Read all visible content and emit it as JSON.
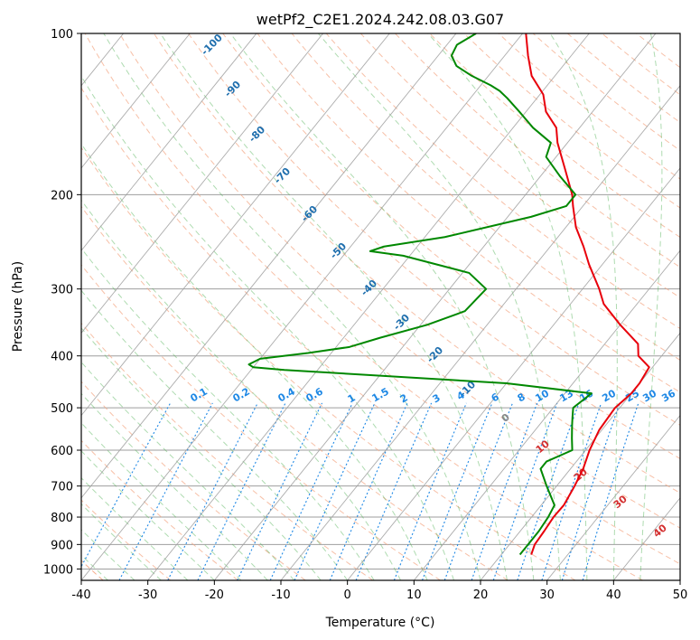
{
  "chart_data": {
    "type": "line",
    "title": "wetPf2_C2E1.2024.242.08.03.G07",
    "xlabel": "Temperature (°C)",
    "ylabel": "Pressure (hPa)",
    "xlim": [
      -40,
      50
    ],
    "ylim": [
      1050,
      100
    ],
    "y_scale": "log",
    "grid": true,
    "x_ticks": [
      -40,
      -30,
      -20,
      -10,
      0,
      10,
      20,
      30,
      40,
      50
    ],
    "y_ticks": [
      100,
      200,
      300,
      400,
      500,
      600,
      700,
      800,
      900,
      1000
    ],
    "colors": {
      "temperature": "#e8000b",
      "dewpoint": "#008800",
      "isotherm": "#9e9e9e",
      "dry_adiabat": "#f4a582",
      "moist_adiabat": "#4caf50",
      "mixing_ratio": "#1e88e5"
    },
    "dry_adiabat_labels": [
      "-100",
      "-90",
      "-80",
      "-70",
      "-60",
      "-50",
      "-40",
      "-30",
      "-20",
      "-10"
    ],
    "mixing_ratio_labels": [
      "0.1",
      "0.2",
      "0.4",
      "0.6",
      "1",
      "1.5",
      "2",
      "3",
      "4",
      "6",
      "8",
      "10",
      "13",
      "16",
      "20",
      "25",
      "30",
      "36"
    ],
    "moist_adiabat_labels": [
      "0",
      "10",
      "20",
      "30",
      "40"
    ],
    "series": [
      {
        "key": "temperature",
        "p": [
          940,
          900,
          850,
          800,
          760,
          700,
          650,
          600,
          550,
          500,
          470,
          450,
          420,
          400,
          380,
          350,
          320,
          300,
          270,
          250,
          230,
          210,
          200,
          180,
          160,
          150,
          140,
          130,
          120,
          110,
          100
        ],
        "t": [
          24.5,
          23.8,
          23.6,
          23.3,
          23.4,
          22.7,
          21.9,
          20.6,
          19.6,
          19.3,
          20.0,
          20.0,
          19.5,
          16.5,
          15.0,
          10.0,
          5.0,
          2.5,
          -2.0,
          -5.0,
          -8.5,
          -11.5,
          -13.0,
          -17.0,
          -21.5,
          -23.5,
          -27.0,
          -29.5,
          -33.5,
          -36.5,
          -39.5
        ]
      },
      {
        "key": "dewpoint",
        "p": [
          940,
          900,
          850,
          800,
          760,
          700,
          650,
          630,
          600,
          570,
          540,
          520,
          500,
          470,
          450,
          425,
          420,
          415,
          405,
          395,
          385,
          370,
          350,
          330,
          300,
          280,
          260,
          255,
          250,
          240,
          220,
          210,
          200,
          185,
          170,
          160,
          150,
          140,
          132,
          128,
          125,
          120,
          115,
          110,
          105,
          100
        ],
        "t": [
          22.8,
          22.8,
          22.8,
          22.5,
          22.0,
          18.5,
          15.5,
          15.5,
          18.0,
          16.5,
          15.0,
          14.0,
          13.0,
          14.0,
          0.0,
          -35.0,
          -40.0,
          -41.0,
          -40.0,
          -33.5,
          -28.0,
          -24.5,
          -19.0,
          -15.0,
          -14.5,
          -19.0,
          -31.0,
          -36.5,
          -35.0,
          -27.0,
          -16.5,
          -12.5,
          -12.5,
          -17.0,
          -21.5,
          -22.5,
          -27.0,
          -31.0,
          -34.5,
          -36.5,
          -38.5,
          -42.5,
          -46.0,
          -48.0,
          -48.5,
          -47.0
        ]
      }
    ]
  }
}
